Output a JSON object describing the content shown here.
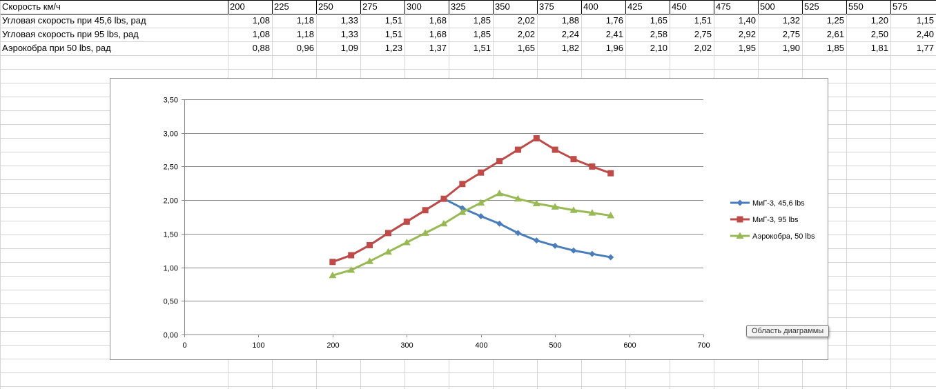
{
  "sheet": {
    "headers": [
      "Скорость км/ч",
      "200",
      "225",
      "250",
      "275",
      "300",
      "325",
      "350",
      "375",
      "400",
      "425",
      "450",
      "475",
      "500",
      "525",
      "550",
      "575"
    ],
    "rows": [
      {
        "label": "Угловая скорость при 45,6 lbs, рад",
        "values": [
          "1,08",
          "1,18",
          "1,33",
          "1,51",
          "1,68",
          "1,85",
          "2,02",
          "1,88",
          "1,76",
          "1,65",
          "1,51",
          "1,40",
          "1,32",
          "1,25",
          "1,20",
          "1,15"
        ]
      },
      {
        "label": "Угловая скорость при 95 lbs, рад",
        "values": [
          "1,08",
          "1,18",
          "1,33",
          "1,51",
          "1,68",
          "1,85",
          "2,02",
          "2,24",
          "2,41",
          "2,58",
          "2,75",
          "2,92",
          "2,75",
          "2,61",
          "2,50",
          "2,40"
        ]
      },
      {
        "label": "Аэрокобра при 50 lbs, рад",
        "values": [
          "0,88",
          "0,96",
          "1,09",
          "1,23",
          "1,37",
          "1,51",
          "1,65",
          "1,82",
          "1,96",
          "2,10",
          "2,02",
          "1,95",
          "1,90",
          "1,85",
          "1,81",
          "1,77"
        ]
      }
    ]
  },
  "chart_data": {
    "type": "scatter",
    "x": [
      200,
      225,
      250,
      275,
      300,
      325,
      350,
      375,
      400,
      425,
      450,
      475,
      500,
      525,
      550,
      575
    ],
    "series": [
      {
        "name": "МиГ-3, 45,6 lbs",
        "color": "#4a7ebb",
        "marker": "diamond",
        "values": [
          1.08,
          1.18,
          1.33,
          1.51,
          1.68,
          1.85,
          2.02,
          1.88,
          1.76,
          1.65,
          1.51,
          1.4,
          1.32,
          1.25,
          1.2,
          1.15
        ]
      },
      {
        "name": "МиГ-3, 95 lbs",
        "color": "#be4b48",
        "marker": "square",
        "values": [
          1.08,
          1.18,
          1.33,
          1.51,
          1.68,
          1.85,
          2.02,
          2.24,
          2.41,
          2.58,
          2.75,
          2.92,
          2.75,
          2.61,
          2.5,
          2.4
        ]
      },
      {
        "name": "Аэрокобра, 50 lbs",
        "color": "#98b954",
        "marker": "triangle",
        "values": [
          0.88,
          0.96,
          1.09,
          1.23,
          1.37,
          1.51,
          1.65,
          1.82,
          1.96,
          2.1,
          2.02,
          1.95,
          1.9,
          1.85,
          1.81,
          1.77
        ]
      }
    ],
    "xlim": [
      0,
      700
    ],
    "ylim": [
      0,
      3.5
    ],
    "x_ticks": [
      "0",
      "100",
      "200",
      "300",
      "400",
      "500",
      "600",
      "700"
    ],
    "y_ticks": [
      "0,00",
      "0,50",
      "1,00",
      "1,50",
      "2,00",
      "2,50",
      "3,00",
      "3,50"
    ],
    "grid": "horizontal",
    "legend": "right"
  },
  "tooltip": "Область диаграммы"
}
